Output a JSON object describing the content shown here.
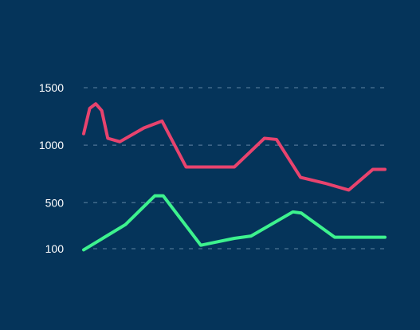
{
  "chart_data": {
    "type": "line",
    "title": "",
    "xlabel": "",
    "ylabel": "",
    "grid": true,
    "legend": "none",
    "y_ticks": [
      100,
      500,
      1000,
      1500
    ],
    "series": [
      {
        "color": "#e8436e",
        "points": [
          [
            0,
            1100
          ],
          [
            0.1,
            1320
          ],
          [
            0.2,
            1360
          ],
          [
            0.3,
            1300
          ],
          [
            0.4,
            1060
          ],
          [
            0.6,
            1030
          ],
          [
            1.0,
            1150
          ],
          [
            1.3,
            1210
          ],
          [
            1.7,
            810
          ],
          [
            2.0,
            810
          ],
          [
            2.5,
            810
          ],
          [
            3.0,
            1060
          ],
          [
            3.2,
            1050
          ],
          [
            3.6,
            720
          ],
          [
            4.0,
            670
          ],
          [
            4.4,
            610
          ],
          [
            4.8,
            790
          ],
          [
            5.0,
            790
          ]
        ]
      },
      {
        "color": "#3df28e",
        "points": [
          [
            0,
            90
          ],
          [
            1.0,
            310
          ],
          [
            1.7,
            560
          ],
          [
            1.9,
            560
          ],
          [
            2.8,
            130
          ],
          [
            3.6,
            190
          ],
          [
            4.0,
            210
          ],
          [
            5.0,
            420
          ],
          [
            5.2,
            410
          ],
          [
            6.0,
            200
          ],
          [
            7.0,
            200
          ],
          [
            7.2,
            200
          ]
        ]
      }
    ],
    "colors": {
      "background": "#05345a",
      "grid": "#4e7595",
      "tick_text": "#ffffff"
    }
  }
}
